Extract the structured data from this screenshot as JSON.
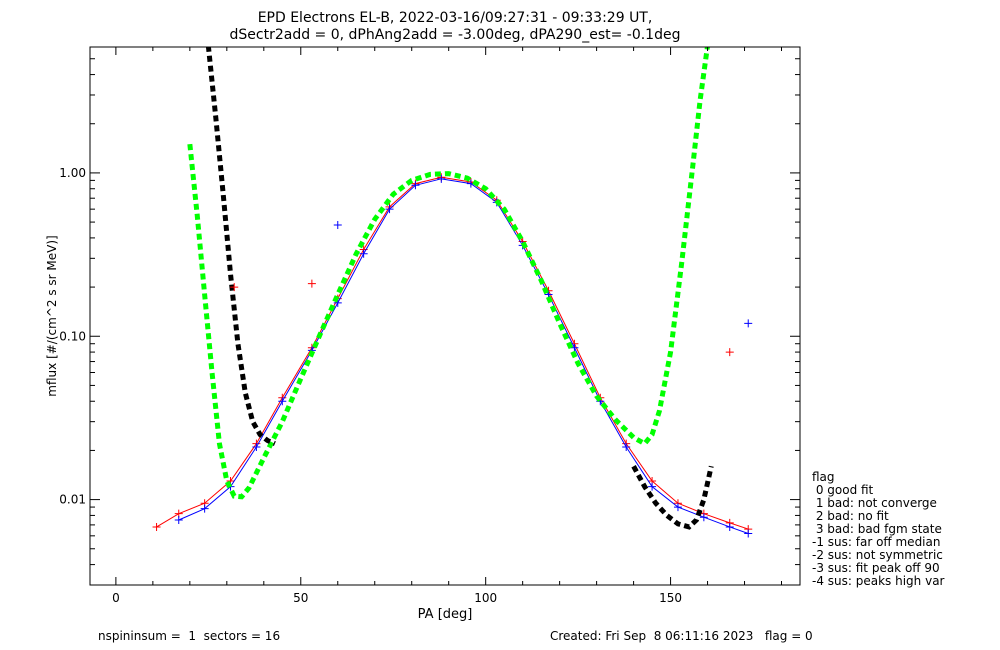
{
  "chart_data": {
    "type": "line",
    "title": "EPD Electrons EL-B, 2022-03-16/09:27:31 - 09:33:29 UT,",
    "subtitle": "dSectr2add = 0, dPhAng2add = -3.00deg, dPA290_est=  -0.1deg",
    "xlabel": "PA [deg]",
    "ylabel": "mflux [#/(cm^2 s sr MeV)]",
    "xlim": [
      -7,
      185
    ],
    "ylim": [
      0.003,
      5.9
    ],
    "yscale": "log",
    "x_ticks": [
      {
        "value": 0,
        "label": "0"
      },
      {
        "value": 50,
        "label": "50"
      },
      {
        "value": 100,
        "label": "100"
      },
      {
        "value": 150,
        "label": "150"
      }
    ],
    "y_ticks": [
      {
        "value": 0.01,
        "label": "0.01"
      },
      {
        "value": 0.1,
        "label": "0.10"
      },
      {
        "value": 1.0,
        "label": "1.00"
      }
    ],
    "grid": false,
    "series": [
      {
        "color": "#ff0000",
        "marker": "+",
        "x": [
          11,
          17,
          24,
          31,
          38,
          45,
          53,
          60,
          67,
          74,
          81,
          88,
          96,
          103,
          110,
          117,
          124,
          131,
          138,
          145,
          152,
          159,
          166,
          171
        ],
        "y": [
          0.0068,
          0.0082,
          0.0095,
          0.013,
          0.022,
          0.042,
          0.085,
          0.17,
          0.34,
          0.62,
          0.86,
          0.94,
          0.88,
          0.68,
          0.38,
          0.19,
          0.09,
          0.042,
          0.022,
          0.013,
          0.0095,
          0.0082,
          0.0072,
          0.0066
        ]
      },
      {
        "color": "#0000ff",
        "marker": "+",
        "x": [
          17,
          24,
          31,
          38,
          45,
          53,
          60,
          67,
          74,
          81,
          88,
          96,
          103,
          110,
          117,
          124,
          131,
          138,
          145,
          152,
          159,
          166,
          171
        ],
        "y": [
          0.0075,
          0.0088,
          0.012,
          0.021,
          0.04,
          0.082,
          0.16,
          0.32,
          0.6,
          0.84,
          0.92,
          0.86,
          0.66,
          0.36,
          0.18,
          0.085,
          0.04,
          0.021,
          0.012,
          0.009,
          0.0078,
          0.0068,
          0.0062
        ]
      },
      {
        "color": "#00ff00",
        "style": "dashed",
        "x": [
          20,
          22,
          24,
          26,
          28,
          30,
          32,
          34,
          36,
          40,
          45,
          50,
          55,
          60,
          65,
          70,
          75,
          80,
          85,
          90,
          95,
          100,
          105,
          110,
          115,
          120,
          125,
          130,
          135,
          140,
          143,
          145,
          147,
          150,
          153,
          156,
          158,
          160
        ],
        "y": [
          1.5,
          0.55,
          0.18,
          0.06,
          0.022,
          0.013,
          0.0105,
          0.0104,
          0.0118,
          0.018,
          0.03,
          0.055,
          0.1,
          0.18,
          0.32,
          0.52,
          0.74,
          0.9,
          0.98,
          0.99,
          0.93,
          0.8,
          0.6,
          0.38,
          0.22,
          0.12,
          0.068,
          0.043,
          0.031,
          0.024,
          0.022,
          0.025,
          0.035,
          0.08,
          0.28,
          1.1,
          2.8,
          6.0
        ]
      },
      {
        "color": "#000000",
        "style": "dashed",
        "x": [
          25,
          27,
          29,
          31,
          33,
          35,
          37,
          39,
          41,
          43,
          140,
          143,
          146,
          149,
          152,
          155,
          157,
          159,
          161
        ],
        "y": [
          6.0,
          2.2,
          0.75,
          0.24,
          0.09,
          0.045,
          0.03,
          0.025,
          0.023,
          0.022,
          0.016,
          0.012,
          0.0095,
          0.008,
          0.0071,
          0.0068,
          0.0075,
          0.01,
          0.016
        ]
      }
    ],
    "outliers": [
      {
        "x": 166,
        "y": 0.08,
        "color": "#ff0000"
      },
      {
        "x": 171,
        "y": 0.12,
        "color": "#0000ff"
      },
      {
        "x": 60,
        "y": 0.48,
        "color": "#0000ff"
      },
      {
        "x": 53,
        "y": 0.21,
        "color": "#ff0000"
      },
      {
        "x": 32,
        "y": 0.2,
        "color": "#ff0000"
      }
    ]
  },
  "legend": {
    "title": "flag",
    "items": [
      " 0 good fit",
      " 1 bad: not converge",
      " 2 bad: no fit",
      " 3 bad: bad fgm state",
      "-1 sus: far off median",
      "-2 sus: not symmetric",
      "-3 sus: fit peak off 90",
      "-4 sus: peaks high var"
    ]
  },
  "footer": {
    "left": "nspininsum =  1  sectors = 16",
    "right": "Created: Fri Sep  8 06:11:16 2023   flag = 0"
  }
}
